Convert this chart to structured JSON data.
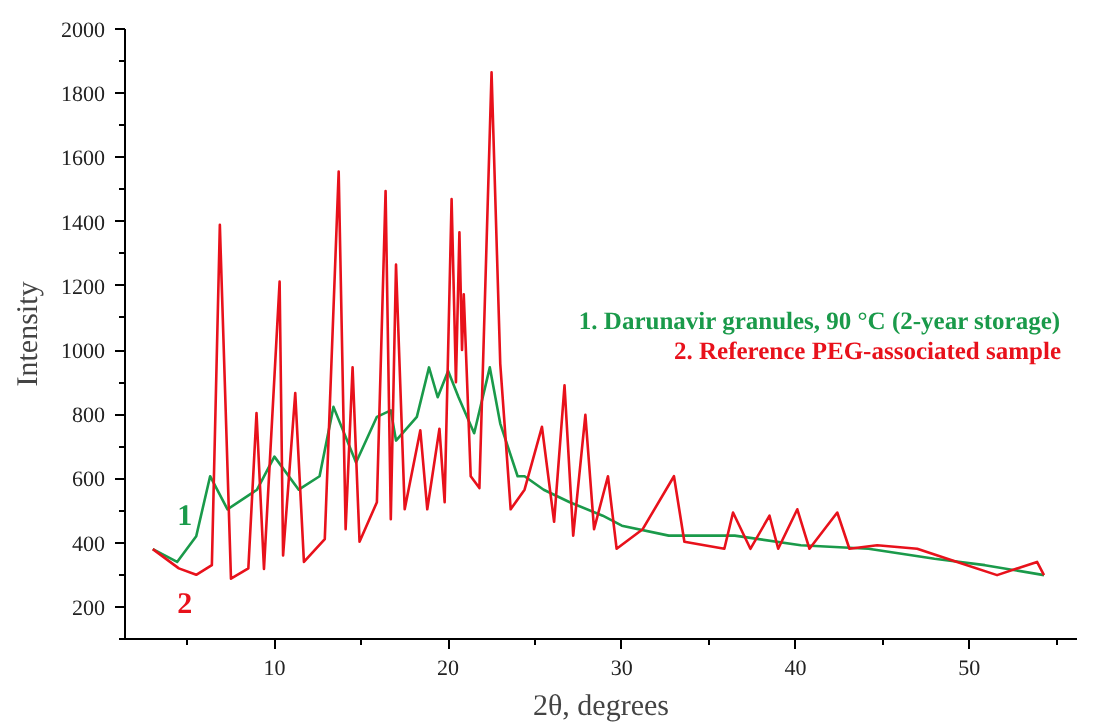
{
  "chart_data": {
    "type": "line",
    "xlabel": "2θ, degrees",
    "ylabel": "Intensity",
    "xlim": [
      1.4,
      56.2
    ],
    "ylim": [
      100,
      2000
    ],
    "xticks": [
      10,
      20,
      30,
      40,
      50
    ],
    "yticks": [
      200,
      400,
      600,
      800,
      1000,
      1200,
      1400,
      1600,
      1800,
      2000
    ],
    "grid": false,
    "legend": "right",
    "marker": "none",
    "line_style": "solid",
    "series": [
      {
        "name": "1. Darunavir granules, 90 °C (2-year storage)",
        "color": "#1a9a4a",
        "x": [
          3,
          4.4,
          5.5,
          6.3,
          7.3,
          9.0,
          10.0,
          11.4,
          12.6,
          13.4,
          14.7,
          15.9,
          16.7,
          17.0,
          18.2,
          18.9,
          19.4,
          20.0,
          20.6,
          21.5,
          22.4,
          23.0,
          24.0,
          24.4,
          25.5,
          27.0,
          28.9,
          30.0,
          32.7,
          36.5,
          40.3,
          44.2,
          48.0,
          50.9,
          54.3
        ],
        "values": [
          380,
          340,
          420,
          607,
          504,
          565,
          668,
          565,
          607,
          823,
          650,
          792,
          812,
          718,
          792,
          946,
          853,
          935,
          853,
          741,
          946,
          771,
          607,
          607,
          565,
          526,
          484,
          453,
          422,
          422,
          392,
          381,
          350,
          330,
          299
        ]
      },
      {
        "name": "2. Reference PEG-associated sample",
        "color": "#e8111b",
        "x": [
          3,
          4.5,
          5.5,
          6.4,
          6.86,
          7.5,
          8.5,
          8.97,
          9.4,
          10.3,
          10.5,
          11.2,
          11.7,
          12.9,
          13.7,
          14.1,
          14.5,
          14.9,
          15.9,
          16.4,
          16.7,
          17.0,
          17.5,
          18.4,
          18.8,
          19.5,
          19.8,
          20.2,
          20.45,
          20.65,
          20.8,
          20.9,
          21.3,
          21.8,
          22.5,
          23.0,
          23.6,
          24.4,
          25.4,
          26.1,
          26.7,
          27.2,
          27.9,
          28.4,
          29.2,
          29.7,
          31.2,
          33.0,
          33.6,
          35.9,
          36.4,
          37.4,
          38.5,
          39.0,
          40.1,
          40.8,
          42.4,
          43.1,
          44.7,
          47.0,
          49.3,
          51.6,
          53.9,
          54.3
        ],
        "values": [
          380,
          320,
          300,
          330,
          1390,
          288,
          320,
          804,
          318,
          1213,
          360,
          866,
          340,
          411,
          1556,
          442,
          946,
          403,
          526,
          1495,
          473,
          1266,
          504,
          750,
          504,
          755,
          526,
          1470,
          900,
          1367,
          1000,
          1174,
          607,
          570,
          1865,
          958,
          504,
          565,
          761,
          465,
          890,
          422,
          798,
          442,
          607,
          381,
          442,
          607,
          403,
          381,
          494,
          381,
          484,
          381,
          504,
          381,
          494,
          381,
          392,
          381,
          340,
          299,
          340,
          299
        ]
      }
    ],
    "annotations": [
      "1",
      "2"
    ]
  }
}
